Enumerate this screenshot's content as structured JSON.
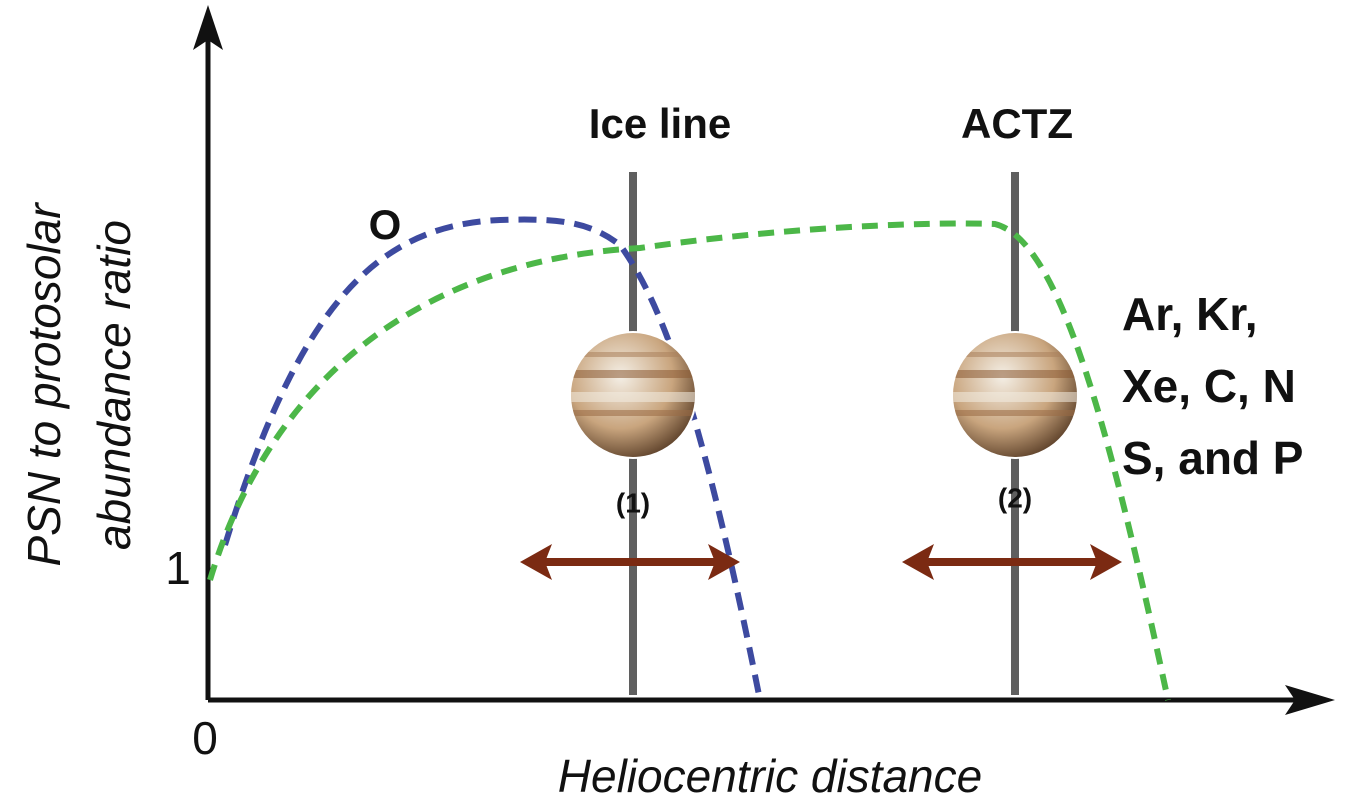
{
  "axes": {
    "x_label": "Heliocentric distance",
    "y_label": [
      "PSN to protosolar",
      "abundance ratio"
    ],
    "x_origin_label": "0",
    "y_tick_label": "1"
  },
  "markers": [
    {
      "label": "Ice line",
      "planet_label": "(1)"
    },
    {
      "label": "ACTZ",
      "planet_label": "(2)"
    }
  ],
  "curves": [
    {
      "label": [
        "O"
      ]
    },
    {
      "label": [
        "Ar, Kr,",
        "Xe, C, N",
        "S, and P"
      ]
    }
  ]
}
